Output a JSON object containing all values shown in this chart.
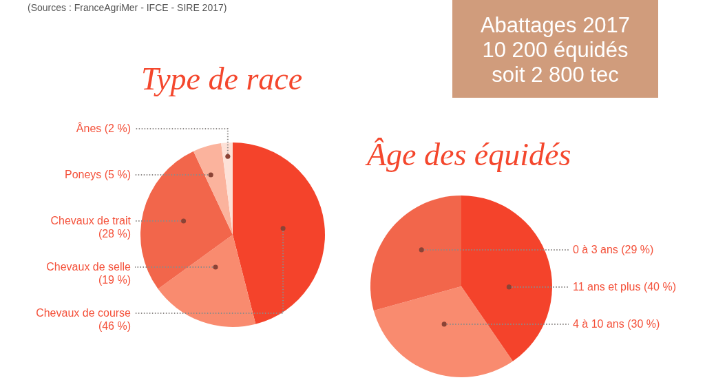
{
  "chart_data": [
    {
      "type": "pie",
      "title": "Type de race",
      "annotations": [
        "(Sources : FranceAgriMer - IFCE - SIRE 2017)"
      ],
      "categories": [
        "Chevaux de course",
        "Chevaux de selle",
        "Chevaux de trait",
        "Poneys",
        "Ânes"
      ],
      "values": [
        46,
        19,
        28,
        5,
        2
      ],
      "value_labels": [
        "(46 %)",
        "(19 %)",
        "(28 %)",
        "(5 %)",
        "(2 %)"
      ],
      "colors": [
        "#f4432b",
        "#f98b6f",
        "#f2664b",
        "#fbb39d",
        "#fde1d7"
      ]
    },
    {
      "type": "other",
      "annotations": [
        "Abattages 2017",
        "10 200 équidés",
        "soit 2 800 tec"
      ]
    },
    {
      "type": "pie",
      "title": "Âge des équidés",
      "categories": [
        "11 ans et plus",
        "4 à 10 ans",
        "0 à 3 ans"
      ],
      "values": [
        40,
        30,
        29
      ],
      "value_labels": [
        "(40 %)",
        "(30 %)",
        "(29 %)"
      ],
      "colors": [
        "#f4432b",
        "#f98b6f",
        "#f2664b"
      ]
    }
  ]
}
